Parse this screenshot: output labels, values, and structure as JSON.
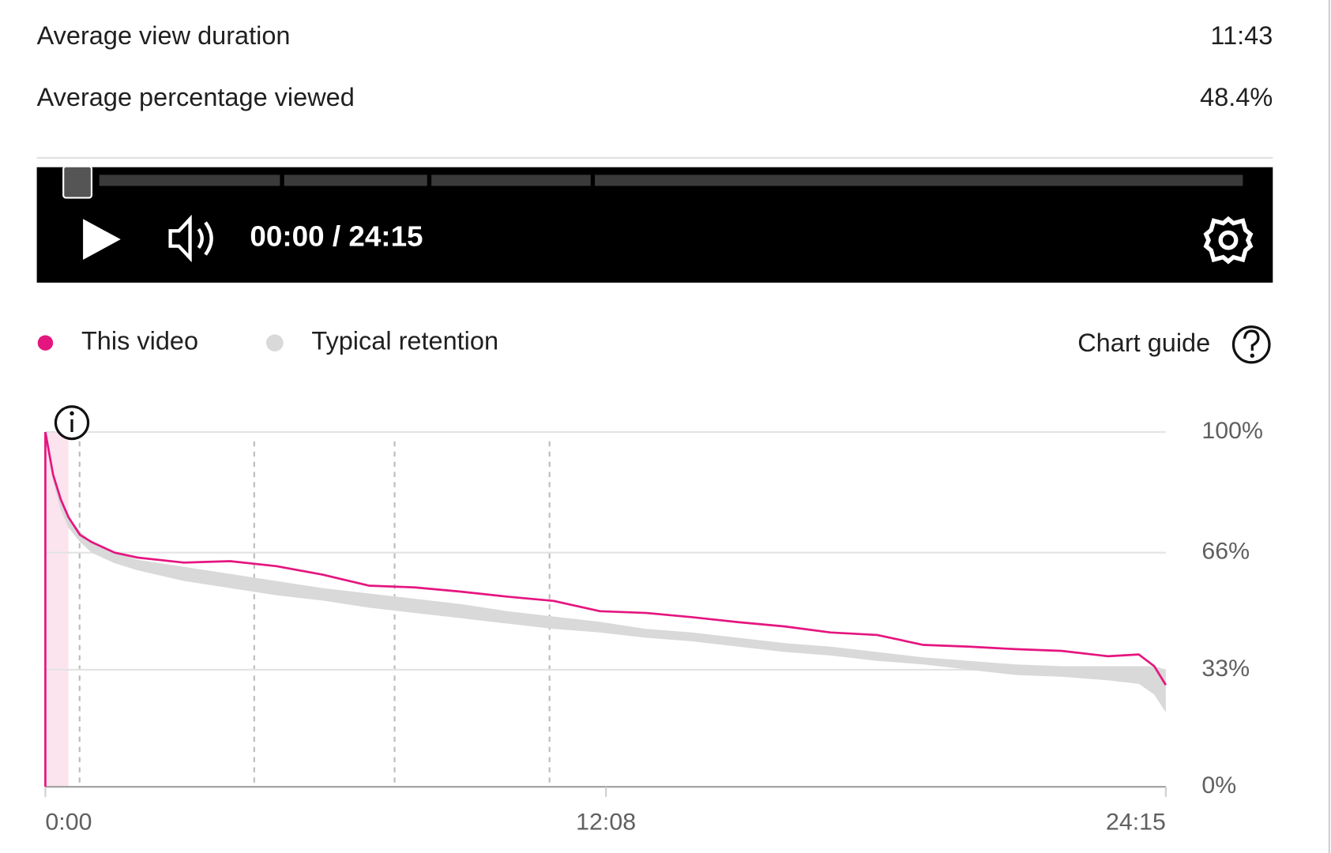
{
  "metrics": [
    {
      "label": "Average view duration",
      "value": "11:43"
    },
    {
      "label": "Average percentage viewed",
      "value": "48.4%"
    }
  ],
  "player": {
    "time": "00:00 / 24:15"
  },
  "chart_guide": "Chart guide",
  "chart_data": {
    "type": "line",
    "x": [
      0,
      10,
      20,
      30,
      45,
      60,
      90,
      120,
      180,
      240,
      300,
      360,
      420,
      480,
      540,
      600,
      660,
      720,
      780,
      840,
      900,
      960,
      1020,
      1080,
      1140,
      1200,
      1260,
      1320,
      1380,
      1420,
      1440,
      1455
    ],
    "xlim": [
      0,
      1455
    ],
    "xticks": [
      {
        "value": 0,
        "label": "0:00"
      },
      {
        "value": 728,
        "label": "12:08"
      },
      {
        "value": 1455,
        "label": "24:15"
      }
    ],
    "ylim": [
      0,
      100
    ],
    "yticks": [
      {
        "value": 0,
        "label": "0%"
      },
      {
        "value": 33,
        "label": "33%"
      },
      {
        "value": 66,
        "label": "66%"
      },
      {
        "value": 100,
        "label": "100%"
      }
    ],
    "grid": true,
    "series": [
      {
        "name": "This video",
        "color": "#e5157f",
        "values": [
          100,
          88,
          81,
          76,
          71,
          69,
          66,
          64.6,
          63.2,
          63.6,
          62.2,
          59.8,
          56.7,
          56.2,
          55,
          53.6,
          52.4,
          49.5,
          49,
          47.8,
          46.4,
          45.2,
          43.5,
          42.8,
          40,
          39.5,
          38.8,
          38.3,
          36.8,
          37.3,
          34,
          28.7
        ]
      },
      {
        "name": "Typical retention",
        "color": "#d9d9d9",
        "upper": [
          100,
          88,
          81,
          76,
          72,
          69,
          66,
          64,
          62,
          60,
          58,
          56,
          54.5,
          53,
          51.5,
          49.5,
          48,
          46.5,
          44.5,
          43.5,
          42,
          40.5,
          39.5,
          38,
          36.5,
          35.5,
          34.5,
          34,
          34,
          34,
          34,
          33
        ],
        "lower": [
          100,
          86,
          78,
          73,
          69,
          66,
          63,
          61,
          58,
          56,
          54,
          52.5,
          50.5,
          49,
          47.5,
          46,
          44.5,
          43.5,
          42,
          41,
          39.5,
          38,
          37,
          35.5,
          34.5,
          33,
          31.5,
          31,
          30,
          29,
          26,
          21
        ]
      }
    ]
  }
}
